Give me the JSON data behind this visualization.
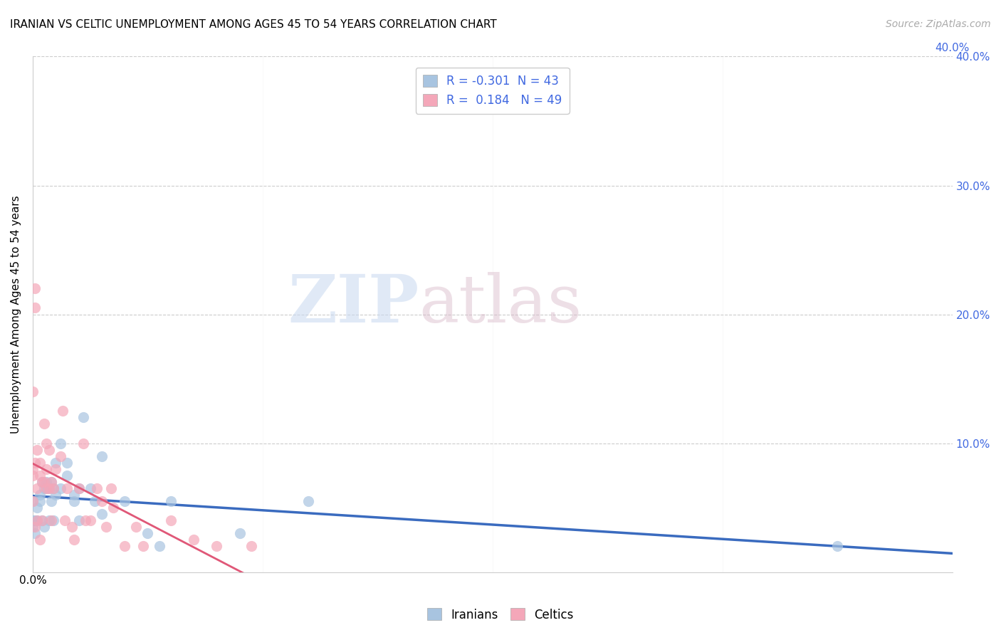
{
  "title": "IRANIAN VS CELTIC UNEMPLOYMENT AMONG AGES 45 TO 54 YEARS CORRELATION CHART",
  "source": "Source: ZipAtlas.com",
  "ylabel": "Unemployment Among Ages 45 to 54 years",
  "xlim": [
    0.0,
    0.4
  ],
  "ylim": [
    0.0,
    0.4
  ],
  "xticks": [
    0.0,
    0.1,
    0.2,
    0.3,
    0.4
  ],
  "yticks": [
    0.0,
    0.1,
    0.2,
    0.3,
    0.4
  ],
  "xtick_labels_left": [
    "0.0%",
    "",
    "",
    "",
    ""
  ],
  "xtick_labels_right": [
    "",
    "",
    "",
    "",
    "40.0%"
  ],
  "ytick_labels_left": [
    "",
    "",
    "",
    "",
    ""
  ],
  "ytick_labels_right": [
    "",
    "10.0%",
    "20.0%",
    "30.0%",
    "40.0%"
  ],
  "iranian_color": "#a8c4e0",
  "celtic_color": "#f4a7b9",
  "iranian_line_color": "#3a6bbf",
  "celtic_line_color": "#e05878",
  "iranian_R": -0.301,
  "iranian_N": 43,
  "celtic_R": 0.184,
  "celtic_N": 49,
  "legend_color": "#4169e1",
  "watermark_zip": "ZIP",
  "watermark_atlas": "atlas",
  "iranian_x": [
    0.0,
    0.0,
    0.0,
    0.001,
    0.001,
    0.002,
    0.002,
    0.003,
    0.003,
    0.004,
    0.004,
    0.005,
    0.005,
    0.006,
    0.006,
    0.007,
    0.007,
    0.008,
    0.008,
    0.009,
    0.009,
    0.01,
    0.01,
    0.012,
    0.012,
    0.015,
    0.015,
    0.018,
    0.018,
    0.02,
    0.02,
    0.022,
    0.025,
    0.027,
    0.03,
    0.03,
    0.04,
    0.05,
    0.055,
    0.06,
    0.09,
    0.12,
    0.35
  ],
  "iranian_y": [
    0.04,
    0.035,
    0.055,
    0.04,
    0.03,
    0.05,
    0.04,
    0.06,
    0.055,
    0.07,
    0.04,
    0.065,
    0.035,
    0.07,
    0.065,
    0.065,
    0.04,
    0.07,
    0.055,
    0.065,
    0.04,
    0.085,
    0.06,
    0.1,
    0.065,
    0.085,
    0.075,
    0.06,
    0.055,
    0.04,
    0.065,
    0.12,
    0.065,
    0.055,
    0.09,
    0.045,
    0.055,
    0.03,
    0.02,
    0.055,
    0.03,
    0.055,
    0.02
  ],
  "celtic_x": [
    0.0,
    0.0,
    0.0,
    0.0,
    0.001,
    0.001,
    0.001,
    0.001,
    0.002,
    0.002,
    0.002,
    0.003,
    0.003,
    0.003,
    0.004,
    0.004,
    0.005,
    0.005,
    0.006,
    0.006,
    0.006,
    0.007,
    0.007,
    0.008,
    0.008,
    0.009,
    0.01,
    0.012,
    0.013,
    0.014,
    0.015,
    0.017,
    0.018,
    0.02,
    0.022,
    0.023,
    0.025,
    0.028,
    0.03,
    0.032,
    0.034,
    0.035,
    0.04,
    0.045,
    0.048,
    0.06,
    0.07,
    0.08,
    0.095
  ],
  "celtic_y": [
    0.14,
    0.08,
    0.075,
    0.055,
    0.22,
    0.205,
    0.085,
    0.035,
    0.095,
    0.065,
    0.04,
    0.085,
    0.075,
    0.025,
    0.07,
    0.04,
    0.115,
    0.07,
    0.1,
    0.08,
    0.065,
    0.095,
    0.065,
    0.07,
    0.04,
    0.065,
    0.08,
    0.09,
    0.125,
    0.04,
    0.065,
    0.035,
    0.025,
    0.065,
    0.1,
    0.04,
    0.04,
    0.065,
    0.055,
    0.035,
    0.065,
    0.05,
    0.02,
    0.035,
    0.02,
    0.04,
    0.025,
    0.02,
    0.02
  ],
  "title_fontsize": 11,
  "axis_label_fontsize": 11,
  "tick_fontsize": 11,
  "legend_fontsize": 12,
  "source_fontsize": 10
}
